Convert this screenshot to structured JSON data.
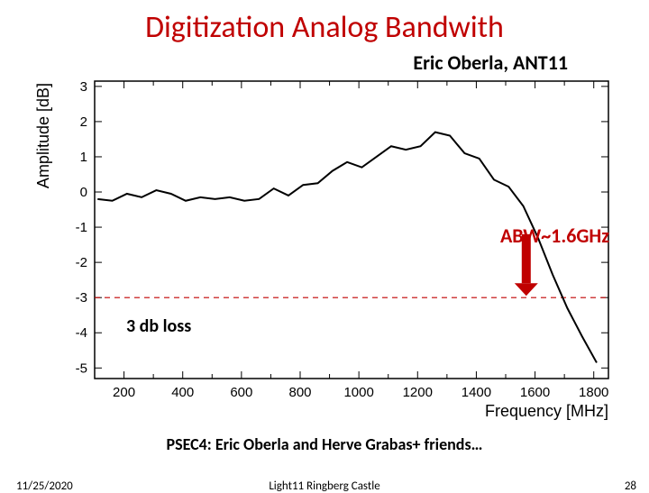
{
  "title": "Digitization Analog Bandwith",
  "author": "Eric Oberla, ANT11",
  "abw_label": "ABW~1.6GHz",
  "db_loss": "3 db loss",
  "psec_line": "PSEC4: Eric Oberla and Herve Grabas+ friends…",
  "footer": {
    "date": "11/25/2020",
    "center": "Light11 Ringberg Castle",
    "page": "28"
  },
  "chart": {
    "type": "line",
    "xlabel": "Frequency [MHz]",
    "ylabel": "Amplitude [dB]",
    "label_fontsize": 18,
    "tick_fontsize": 15,
    "xlim": [
      100,
      1850
    ],
    "ylim": [
      -5.3,
      3.15
    ],
    "xticks": [
      200,
      400,
      600,
      800,
      1000,
      1200,
      1400,
      1600,
      1800
    ],
    "yticks": [
      -5,
      -4,
      -3,
      -2,
      -1,
      0,
      1,
      2,
      3
    ],
    "line_color": "#000000",
    "line_width": 2,
    "dash_y": -3,
    "dash_color": "#c00000",
    "dash_width": 1.2,
    "arrow": {
      "x": 1570,
      "y_top": -1.2,
      "y_bot": -2.95,
      "color": "#c00000",
      "width": 10
    },
    "background": "#ffffff",
    "data": [
      [
        110,
        -0.2
      ],
      [
        160,
        -0.25
      ],
      [
        210,
        -0.05
      ],
      [
        260,
        -0.15
      ],
      [
        310,
        0.05
      ],
      [
        360,
        -0.05
      ],
      [
        410,
        -0.25
      ],
      [
        460,
        -0.15
      ],
      [
        510,
        -0.2
      ],
      [
        560,
        -0.15
      ],
      [
        610,
        -0.25
      ],
      [
        660,
        -0.2
      ],
      [
        710,
        0.1
      ],
      [
        760,
        -0.1
      ],
      [
        810,
        0.2
      ],
      [
        860,
        0.25
      ],
      [
        910,
        0.6
      ],
      [
        960,
        0.85
      ],
      [
        1010,
        0.7
      ],
      [
        1060,
        1.0
      ],
      [
        1110,
        1.3
      ],
      [
        1160,
        1.2
      ],
      [
        1210,
        1.3
      ],
      [
        1260,
        1.7
      ],
      [
        1310,
        1.6
      ],
      [
        1360,
        1.1
      ],
      [
        1410,
        0.95
      ],
      [
        1460,
        0.35
      ],
      [
        1510,
        0.15
      ],
      [
        1560,
        -0.4
      ],
      [
        1610,
        -1.3
      ],
      [
        1660,
        -2.35
      ],
      [
        1710,
        -3.3
      ],
      [
        1760,
        -4.1
      ],
      [
        1810,
        -4.85
      ]
    ]
  }
}
